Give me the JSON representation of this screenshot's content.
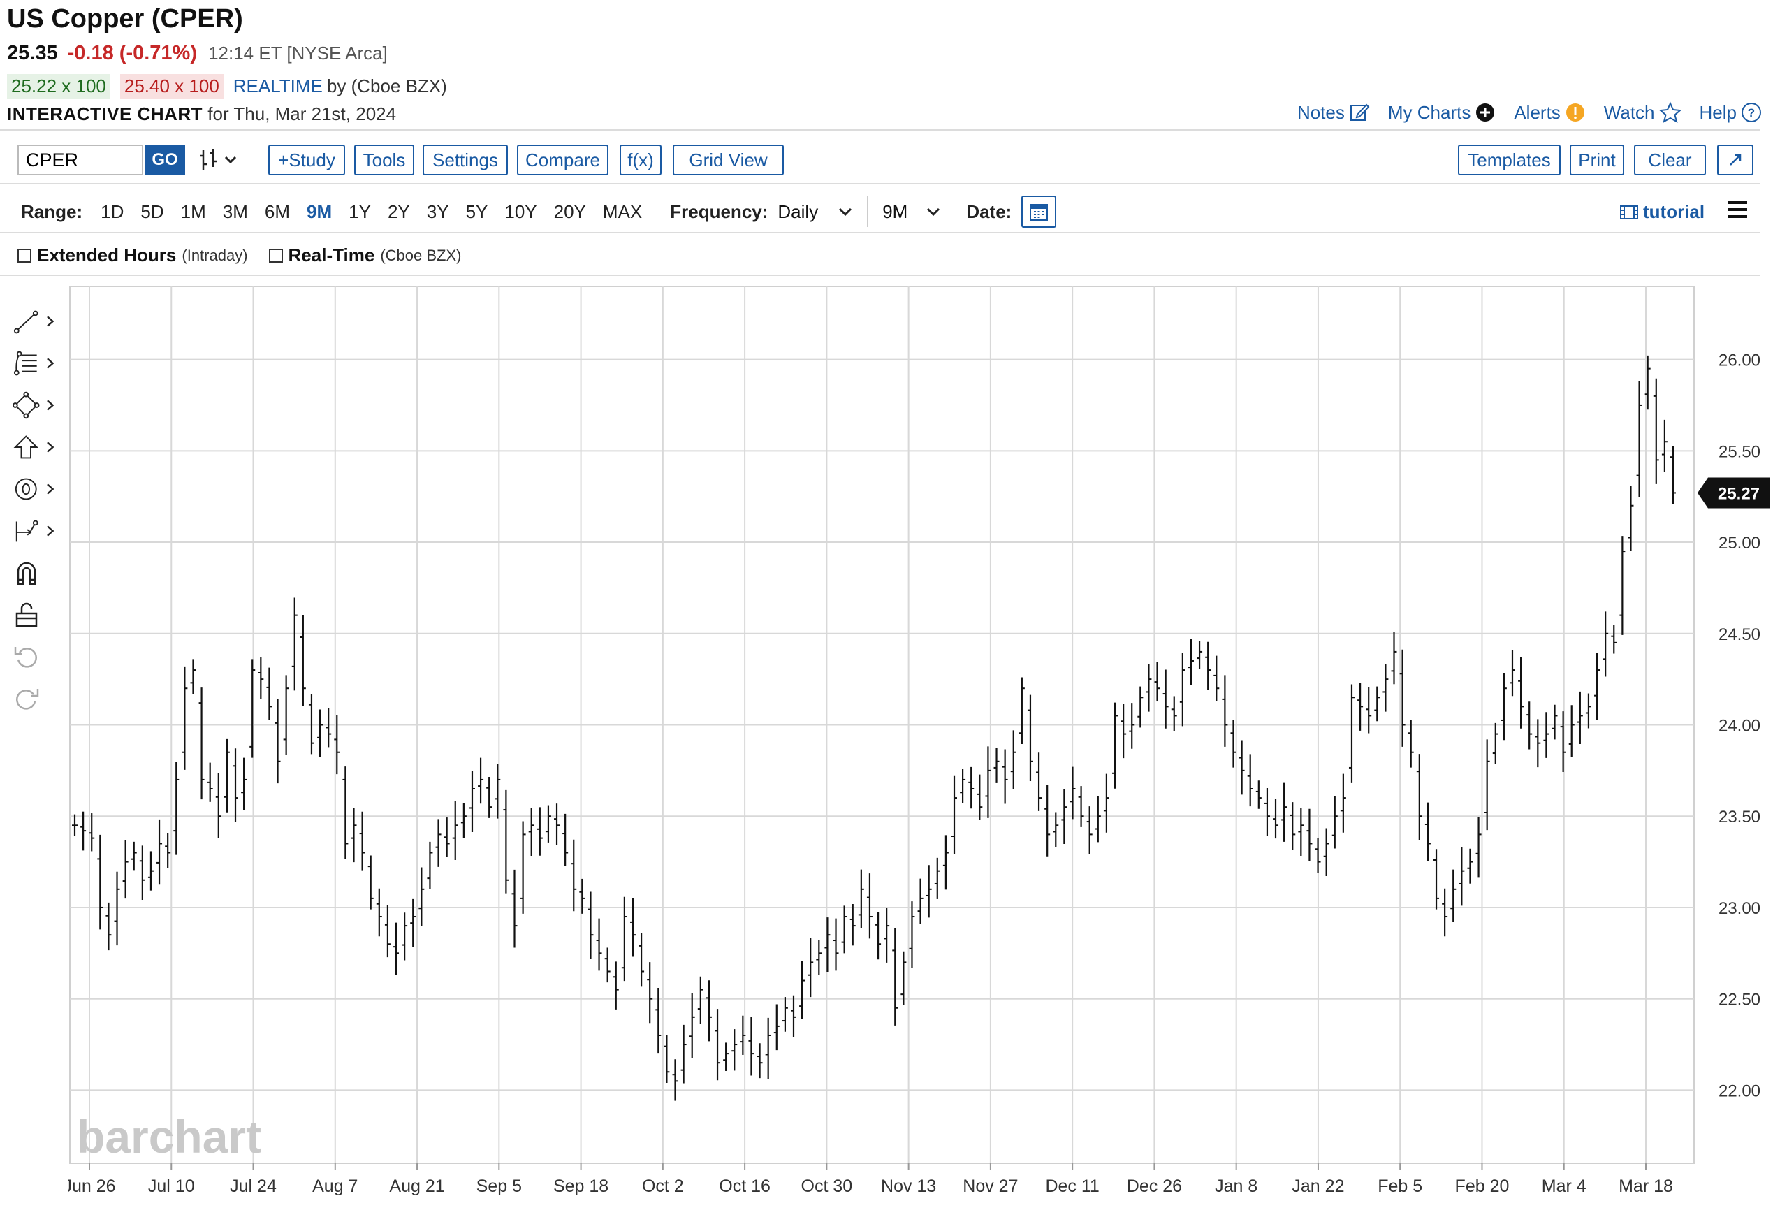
{
  "header": {
    "title": "US Copper (CPER)",
    "last": "25.35",
    "change": "-0.18 (-0.71%)",
    "time": "12:14 ET [NYSE Arca]",
    "bid": "25.22 x 100",
    "ask": "25.40 x 100",
    "realtime": "REALTIME",
    "realtime_by": "by (Cboe BZX)",
    "interactive": "INTERACTIVE CHART",
    "for_date": "for Thu, Mar 21st, 2024"
  },
  "top_links": [
    "Notes",
    "My Charts",
    "Alerts",
    "Watch",
    "Help"
  ],
  "toolbar": {
    "symbol": "CPER",
    "go": "GO",
    "study": "+Study",
    "tools": "Tools",
    "settings": "Settings",
    "compare": "Compare",
    "fx": "f(x)",
    "grid": "Grid View",
    "templates": "Templates",
    "print": "Print",
    "clear": "Clear"
  },
  "rangebar": {
    "range_label": "Range:",
    "ranges": [
      "1D",
      "5D",
      "1M",
      "3M",
      "6M",
      "9M",
      "1Y",
      "2Y",
      "3Y",
      "5Y",
      "10Y",
      "20Y",
      "MAX"
    ],
    "active_range": "9M",
    "frequency_label": "Frequency:",
    "frequency": "Daily",
    "period": "9M",
    "date_label": "Date:",
    "tutorial": "tutorial"
  },
  "options": {
    "extended": "Extended Hours",
    "extended_sub": "(Intraday)",
    "realtime": "Real-Time",
    "realtime_sub": "(Cboe BZX)"
  },
  "watermark": "barchart",
  "colors": {
    "accent": "#1a5aa3",
    "down": "#c62828",
    "up": "#1e6b1e"
  },
  "chart_data": {
    "type": "ohlc",
    "ylim": [
      21.6,
      26.4
    ],
    "yticks": [
      22.0,
      22.5,
      23.0,
      23.5,
      24.0,
      24.5,
      25.0,
      25.5,
      26.0
    ],
    "xticks": [
      "Jun 26",
      "Jul 10",
      "Jul 24",
      "Aug 7",
      "Aug 21",
      "Sep 5",
      "Sep 18",
      "Oct 2",
      "Oct 16",
      "Oct 30",
      "Nov 13",
      "Nov 27",
      "Dec 11",
      "Dec 26",
      "Jan 8",
      "Jan 22",
      "Feb 5",
      "Feb 20",
      "Mar 4",
      "Mar 18"
    ],
    "last_price_label": "25.27",
    "grid": true,
    "closes": [
      23.45,
      23.42,
      23.38,
      23.0,
      22.85,
      23.1,
      23.25,
      23.3,
      23.15,
      23.2,
      23.35,
      23.3,
      23.7,
      24.2,
      24.3,
      23.7,
      23.65,
      23.5,
      23.85,
      23.6,
      23.7,
      24.3,
      24.25,
      24.1,
      23.8,
      24.2,
      24.6,
      24.2,
      23.9,
      24.0,
      23.95,
      23.85,
      23.35,
      23.45,
      23.3,
      23.05,
      22.95,
      22.8,
      22.75,
      22.9,
      22.95,
      23.1,
      23.3,
      23.4,
      23.35,
      23.45,
      23.5,
      23.65,
      23.7,
      23.55,
      23.7,
      23.15,
      22.9,
      23.4,
      23.45,
      23.38,
      23.5,
      23.45,
      23.3,
      23.1,
      23.05,
      22.85,
      22.75,
      22.65,
      22.55,
      22.95,
      22.85,
      22.65,
      22.5,
      22.3,
      22.1,
      22.05,
      22.25,
      22.4,
      22.55,
      22.4,
      22.15,
      22.2,
      22.25,
      22.3,
      22.2,
      22.15,
      22.3,
      22.35,
      22.45,
      22.4,
      22.6,
      22.7,
      22.75,
      22.85,
      22.75,
      22.95,
      22.9,
      23.1,
      22.95,
      22.8,
      22.9,
      22.45,
      22.7,
      22.95,
      23.05,
      23.1,
      23.2,
      23.3,
      23.6,
      23.7,
      23.65,
      23.55,
      23.75,
      23.8,
      23.7,
      23.85,
      24.2,
      23.8,
      23.6,
      23.4,
      23.45,
      23.55,
      23.65,
      23.5,
      23.4,
      23.5,
      23.6,
      24.05,
      23.95,
      24.0,
      24.15,
      24.25,
      24.2,
      24.1,
      24.05,
      24.3,
      24.35,
      24.4,
      24.3,
      24.2,
      24.0,
      23.85,
      23.75,
      23.65,
      23.6,
      23.5,
      23.45,
      23.55,
      23.4,
      23.45,
      23.35,
      23.25,
      23.35,
      23.5,
      23.6,
      24.15,
      24.1,
      24.05,
      24.15,
      24.25,
      24.4,
      24.0,
      23.85,
      23.5,
      23.35,
      23.05,
      22.95,
      23.1,
      23.2,
      23.25,
      23.4,
      23.8,
      23.95,
      24.2,
      24.3,
      24.1,
      23.95,
      23.9,
      23.95,
      24.05,
      23.85,
      24.0,
      24.05,
      24.1,
      24.3,
      24.5,
      24.45,
      24.95,
      25.2,
      25.75,
      25.95,
      25.45,
      25.55,
      25.27
    ]
  }
}
